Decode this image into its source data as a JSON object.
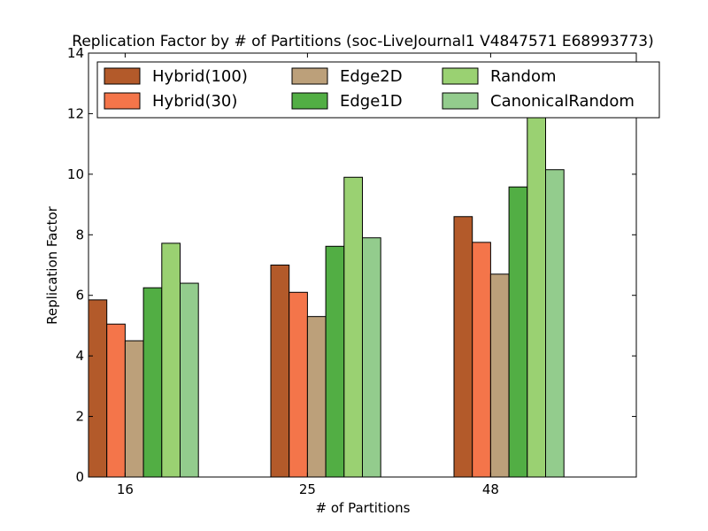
{
  "chart_data": {
    "type": "bar",
    "title": "Replication Factor by # of Partitions (soc-LiveJournal1 V4847571 E68993773)",
    "xlabel": "# of Partitions",
    "ylabel": "Replication Factor",
    "categories": [
      "16",
      "25",
      "48"
    ],
    "ylim": [
      0,
      14
    ],
    "yticks": [
      0,
      2,
      4,
      6,
      8,
      10,
      12,
      14
    ],
    "grid": false,
    "legend_placement": "top",
    "series": [
      {
        "name": "Hybrid(100)",
        "color": "#b35a2a",
        "values": [
          5.85,
          7.0,
          8.6
        ]
      },
      {
        "name": "Hybrid(30)",
        "color": "#f4754a",
        "values": [
          5.05,
          6.1,
          7.75
        ]
      },
      {
        "name": "Edge2D",
        "color": "#bca07a",
        "values": [
          4.5,
          5.3,
          6.7
        ]
      },
      {
        "name": "Edge1D",
        "color": "#52ae44",
        "values": [
          6.25,
          7.62,
          9.58
        ]
      },
      {
        "name": "Random",
        "color": "#9ad172",
        "values": [
          7.72,
          9.9,
          12.35
        ]
      },
      {
        "name": "CanonicalRandom",
        "color": "#93cc8d",
        "values": [
          6.4,
          7.9,
          10.15
        ]
      }
    ]
  }
}
